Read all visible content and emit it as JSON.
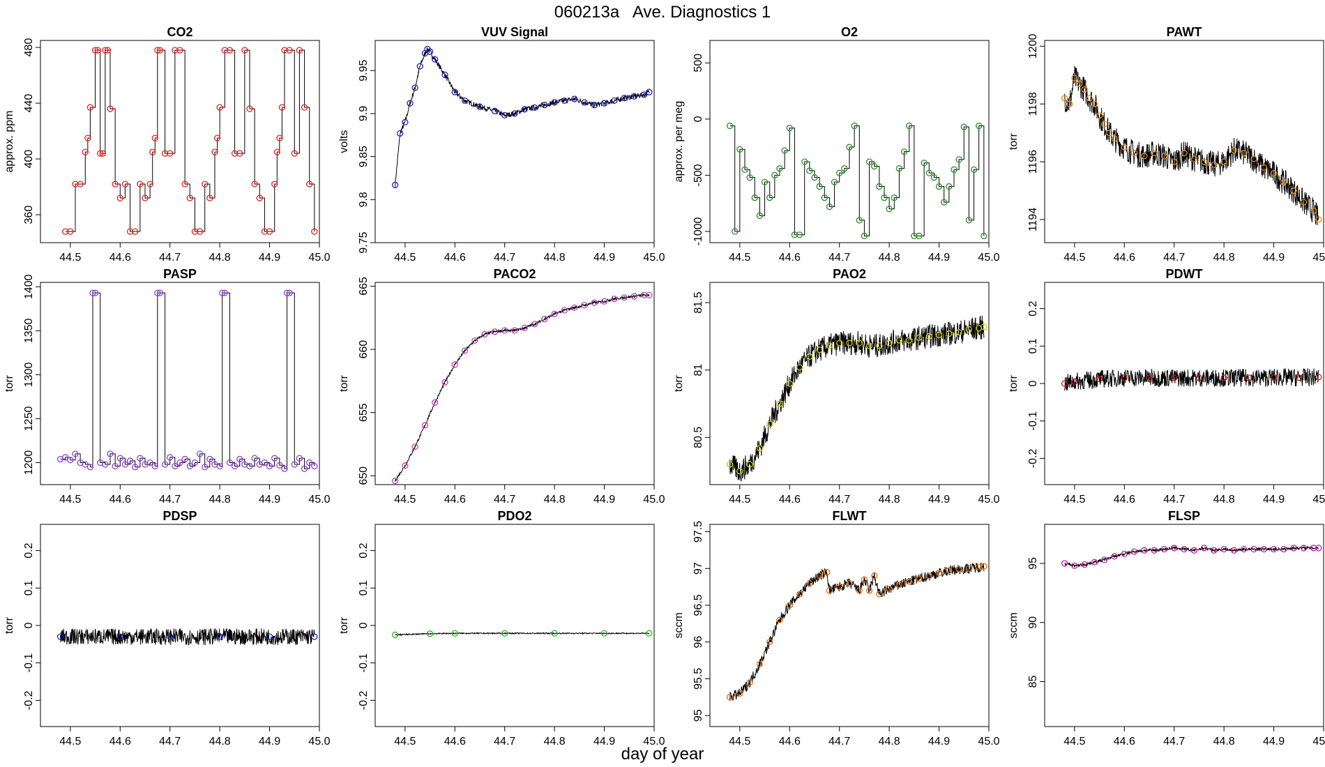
{
  "figure": {
    "title": "060213a   Ave. Diagnostics 1",
    "xlabel": "day of year"
  },
  "chart_data": [
    {
      "name": "CO2",
      "type": "line",
      "title": "CO2",
      "ylabel": "approx. ppm",
      "xlim": [
        44.44,
        45.0
      ],
      "ylim": [
        340,
        485
      ],
      "xticks": [
        44.5,
        44.6,
        44.7,
        44.8,
        44.9,
        45.0
      ],
      "yticks": [
        360,
        400,
        440,
        480
      ],
      "line_color": "#000000",
      "marker_color": "#e02020",
      "noise": 0,
      "x": [
        44.49,
        44.5,
        44.51,
        44.52,
        44.53,
        44.535,
        44.54,
        44.55,
        44.555,
        44.56,
        44.565,
        44.57,
        44.575,
        44.58,
        44.59,
        44.6,
        44.61,
        44.62,
        44.63,
        44.64,
        44.65,
        44.66,
        44.665,
        44.67,
        44.675,
        44.68,
        44.69,
        44.7,
        44.71,
        44.72,
        44.73,
        44.74,
        44.75,
        44.76,
        44.77,
        44.78,
        44.79,
        44.795,
        44.8,
        44.81,
        44.82,
        44.83,
        44.84,
        44.85,
        44.86,
        44.87,
        44.88,
        44.89,
        44.9,
        44.91,
        44.915,
        44.92,
        44.925,
        44.93,
        44.94,
        44.95,
        44.96,
        44.97,
        44.98,
        44.99
      ],
      "y": [
        348,
        348,
        382,
        382,
        405,
        415,
        437,
        478,
        478,
        404,
        404,
        478,
        478,
        436,
        382,
        372,
        382,
        348,
        348,
        382,
        372,
        382,
        405,
        415,
        478,
        478,
        404,
        404,
        478,
        478,
        382,
        372,
        348,
        348,
        382,
        372,
        405,
        415,
        437,
        478,
        478,
        404,
        404,
        478,
        436,
        382,
        372,
        348,
        348,
        382,
        405,
        415,
        437,
        478,
        478,
        404,
        478,
        437,
        382,
        348
      ]
    },
    {
      "name": "VUV Signal",
      "type": "line",
      "title": "VUV Signal",
      "ylabel": "volts",
      "xlim": [
        44.44,
        45.0
      ],
      "ylim": [
        9.75,
        9.985
      ],
      "xticks": [
        44.5,
        44.6,
        44.7,
        44.8,
        44.9,
        45.0
      ],
      "yticks": [
        9.75,
        9.8,
        9.85,
        9.9,
        9.95
      ],
      "line_color": "#000000",
      "marker_color": "#2020c0",
      "noise": 0.003,
      "x": [
        44.48,
        44.49,
        44.5,
        44.51,
        44.52,
        44.53,
        44.54,
        44.545,
        44.55,
        44.56,
        44.58,
        44.6,
        44.62,
        44.65,
        44.68,
        44.7,
        44.72,
        44.74,
        44.76,
        44.78,
        44.8,
        44.82,
        44.84,
        44.86,
        44.88,
        44.9,
        44.92,
        44.94,
        44.96,
        44.98,
        44.99
      ],
      "y": [
        9.817,
        9.877,
        9.89,
        9.912,
        9.93,
        9.955,
        9.97,
        9.975,
        9.972,
        9.963,
        9.945,
        9.925,
        9.915,
        9.908,
        9.903,
        9.898,
        9.9,
        9.905,
        9.907,
        9.91,
        9.913,
        9.915,
        9.917,
        9.913,
        9.91,
        9.912,
        9.915,
        9.918,
        9.92,
        9.922,
        9.925
      ]
    },
    {
      "name": "O2",
      "type": "line",
      "title": "O2",
      "ylabel": "approx. per meg",
      "xlim": [
        44.44,
        45.0
      ],
      "ylim": [
        -1100,
        700
      ],
      "xticks": [
        44.5,
        44.6,
        44.7,
        44.8,
        44.9,
        45.0
      ],
      "yticks": [
        -1000,
        -500,
        0,
        500
      ],
      "line_color": "#000000",
      "marker_color": "#2a8a2a",
      "noise": 0,
      "x": [
        44.48,
        44.49,
        44.5,
        44.51,
        44.52,
        44.53,
        44.54,
        44.55,
        44.56,
        44.57,
        44.58,
        44.59,
        44.6,
        44.61,
        44.62,
        44.63,
        44.64,
        44.65,
        44.66,
        44.67,
        44.68,
        44.69,
        44.7,
        44.71,
        44.72,
        44.73,
        44.74,
        44.75,
        44.76,
        44.77,
        44.78,
        44.79,
        44.8,
        44.81,
        44.82,
        44.83,
        44.84,
        44.85,
        44.86,
        44.87,
        44.88,
        44.89,
        44.9,
        44.91,
        44.92,
        44.93,
        44.94,
        44.95,
        44.96,
        44.97,
        44.98,
        44.99
      ],
      "y": [
        -60,
        -1000,
        -270,
        -450,
        -520,
        -700,
        -860,
        -560,
        -700,
        -500,
        -440,
        -280,
        -80,
        -1030,
        -1030,
        -380,
        -460,
        -520,
        -600,
        -700,
        -780,
        -560,
        -480,
        -440,
        -250,
        -60,
        -900,
        -1040,
        -380,
        -420,
        -600,
        -700,
        -800,
        -700,
        -440,
        -290,
        -60,
        -1040,
        -1040,
        -390,
        -480,
        -520,
        -600,
        -740,
        -600,
        -450,
        -360,
        -70,
        -900,
        -450,
        -60,
        -1040
      ]
    },
    {
      "name": "PAWT",
      "type": "line",
      "title": "PAWT",
      "ylabel": "torr",
      "xlim": [
        44.44,
        45.0
      ],
      "ylim": [
        1193.2,
        1200.2
      ],
      "xticks": [
        44.5,
        44.6,
        44.7,
        44.8,
        44.9,
        45.0
      ],
      "yticks": [
        1194,
        1196,
        1198,
        1200
      ],
      "line_color": "#000000",
      "marker_color": "#e08a1a",
      "noise": 0.45,
      "x": [
        44.48,
        44.49,
        44.5,
        44.51,
        44.52,
        44.53,
        44.54,
        44.55,
        44.56,
        44.57,
        44.58,
        44.6,
        44.62,
        44.64,
        44.66,
        44.68,
        44.7,
        44.72,
        44.74,
        44.76,
        44.78,
        44.8,
        44.82,
        44.84,
        44.86,
        44.88,
        44.9,
        44.92,
        44.94,
        44.96,
        44.98,
        44.99
      ],
      "y": [
        1198.2,
        1198.0,
        1198.9,
        1198.7,
        1198.5,
        1198.2,
        1198.0,
        1197.6,
        1197.3,
        1197.0,
        1196.8,
        1196.5,
        1196.3,
        1196.2,
        1196.3,
        1196.2,
        1196.0,
        1196.3,
        1196.1,
        1196.0,
        1195.9,
        1196.0,
        1196.4,
        1196.3,
        1196.1,
        1195.8,
        1195.6,
        1195.3,
        1195.0,
        1194.6,
        1194.3,
        1194.0
      ]
    },
    {
      "name": "PASP",
      "type": "line",
      "title": "PASP",
      "ylabel": "torr",
      "xlim": [
        44.44,
        45.0
      ],
      "ylim": [
        1175,
        1405
      ],
      "xticks": [
        44.5,
        44.6,
        44.7,
        44.8,
        44.9,
        45.0
      ],
      "yticks": [
        1200,
        1250,
        1300,
        1350,
        1400
      ],
      "line_color": "#000000",
      "marker_color": "#9040d0",
      "noise": 0,
      "x": [
        44.48,
        44.49,
        44.5,
        44.51,
        44.52,
        44.53,
        44.54,
        44.545,
        44.55,
        44.56,
        44.57,
        44.58,
        44.59,
        44.6,
        44.61,
        44.62,
        44.63,
        44.64,
        44.65,
        44.66,
        44.67,
        44.675,
        44.68,
        44.69,
        44.7,
        44.71,
        44.72,
        44.73,
        44.74,
        44.75,
        44.76,
        44.77,
        44.78,
        44.79,
        44.8,
        44.805,
        44.81,
        44.82,
        44.83,
        44.84,
        44.85,
        44.86,
        44.87,
        44.88,
        44.89,
        44.9,
        44.91,
        44.92,
        44.93,
        44.935,
        44.94,
        44.95,
        44.96,
        44.97,
        44.98,
        44.99
      ],
      "y": [
        1204,
        1206,
        1203,
        1210,
        1200,
        1198,
        1195,
        1393,
        1393,
        1200,
        1198,
        1210,
        1196,
        1205,
        1198,
        1202,
        1195,
        1205,
        1198,
        1200,
        1196,
        1393,
        1393,
        1198,
        1206,
        1196,
        1200,
        1204,
        1196,
        1200,
        1210,
        1195,
        1204,
        1198,
        1196,
        1393,
        1393,
        1200,
        1196,
        1204,
        1198,
        1196,
        1205,
        1198,
        1200,
        1196,
        1205,
        1197,
        1193,
        1393,
        1393,
        1198,
        1205,
        1193,
        1200,
        1196
      ]
    },
    {
      "name": "PACO2",
      "type": "line",
      "title": "PACO2",
      "ylabel": "torr",
      "xlim": [
        44.44,
        45.0
      ],
      "ylim": [
        649.3,
        665.3
      ],
      "xticks": [
        44.5,
        44.6,
        44.7,
        44.8,
        44.9,
        45.0
      ],
      "yticks": [
        650,
        655,
        660,
        665
      ],
      "line_color": "#000000",
      "marker_color": "#c040c0",
      "noise": 0.1,
      "x": [
        44.48,
        44.5,
        44.52,
        44.54,
        44.56,
        44.58,
        44.6,
        44.62,
        44.64,
        44.66,
        44.68,
        44.7,
        44.72,
        44.74,
        44.76,
        44.78,
        44.8,
        44.82,
        44.84,
        44.86,
        44.88,
        44.9,
        44.92,
        44.94,
        44.96,
        44.98,
        44.99
      ],
      "y": [
        649.6,
        650.8,
        652.3,
        654.0,
        655.8,
        657.4,
        658.8,
        659.9,
        660.7,
        661.2,
        661.4,
        661.5,
        661.5,
        661.7,
        662.0,
        662.4,
        662.8,
        663.1,
        663.3,
        663.5,
        663.7,
        663.8,
        664.0,
        664.1,
        664.2,
        664.3,
        664.3
      ]
    },
    {
      "name": "PAO2",
      "type": "line",
      "title": "PAO2",
      "ylabel": "torr",
      "xlim": [
        44.44,
        45.0
      ],
      "ylim": [
        80.15,
        81.65
      ],
      "xticks": [
        44.5,
        44.6,
        44.7,
        44.8,
        44.9,
        45.0
      ],
      "yticks": [
        80.5,
        81.0,
        81.5
      ],
      "line_color": "#000000",
      "marker_color": "#c8c800",
      "noise": 0.09,
      "x": [
        44.48,
        44.5,
        44.52,
        44.54,
        44.56,
        44.58,
        44.6,
        44.62,
        44.64,
        44.66,
        44.68,
        44.7,
        44.72,
        44.74,
        44.76,
        44.78,
        44.8,
        44.82,
        44.84,
        44.86,
        44.88,
        44.9,
        44.92,
        44.94,
        44.96,
        44.98,
        44.99
      ],
      "y": [
        80.3,
        80.25,
        80.3,
        80.42,
        80.6,
        80.75,
        80.9,
        81.02,
        81.1,
        81.15,
        81.18,
        81.2,
        81.2,
        81.2,
        81.18,
        81.18,
        81.2,
        81.22,
        81.22,
        81.24,
        81.25,
        81.26,
        81.27,
        81.28,
        81.3,
        81.31,
        81.32
      ]
    },
    {
      "name": "PDWT",
      "type": "line",
      "title": "PDWT",
      "ylabel": "torr",
      "xlim": [
        44.44,
        45.0
      ],
      "ylim": [
        -0.27,
        0.27
      ],
      "xticks": [
        44.5,
        44.6,
        44.7,
        44.8,
        44.9,
        45.0
      ],
      "yticks": [
        -0.2,
        -0.1,
        0.0,
        0.1,
        0.2
      ],
      "line_color": "#000000",
      "marker_color": "#c02020",
      "noise": 0.024,
      "x": [
        44.48,
        44.5,
        44.55,
        44.6,
        44.65,
        44.7,
        44.75,
        44.8,
        44.85,
        44.9,
        44.95,
        44.99
      ],
      "y": [
        0.0,
        0.005,
        0.012,
        0.015,
        0.015,
        0.015,
        0.015,
        0.015,
        0.015,
        0.016,
        0.016,
        0.017
      ]
    },
    {
      "name": "PDSP",
      "type": "line",
      "title": "PDSP",
      "ylabel": "torr",
      "xlim": [
        44.44,
        45.0
      ],
      "ylim": [
        -0.27,
        0.27
      ],
      "xticks": [
        44.5,
        44.6,
        44.7,
        44.8,
        44.9,
        45.0
      ],
      "yticks": [
        -0.2,
        -0.1,
        0.0,
        0.1,
        0.2
      ],
      "line_color": "#000000",
      "marker_color": "#2020c0",
      "noise": 0.022,
      "x": [
        44.48,
        44.6,
        44.7,
        44.8,
        44.9,
        44.99
      ],
      "y": [
        -0.03,
        -0.03,
        -0.03,
        -0.03,
        -0.03,
        -0.03
      ]
    },
    {
      "name": "PDO2",
      "type": "line",
      "title": "PDO2",
      "ylabel": "torr",
      "xlim": [
        44.44,
        45.0
      ],
      "ylim": [
        -0.27,
        0.27
      ],
      "xticks": [
        44.5,
        44.6,
        44.7,
        44.8,
        44.9,
        45.0
      ],
      "yticks": [
        -0.2,
        -0.1,
        0.0,
        0.1,
        0.2
      ],
      "line_color": "#000000",
      "marker_color": "#20c020",
      "noise": 0.0015,
      "x": [
        44.48,
        44.55,
        44.6,
        44.7,
        44.8,
        44.9,
        44.99
      ],
      "y": [
        -0.025,
        -0.022,
        -0.021,
        -0.021,
        -0.021,
        -0.021,
        -0.021
      ]
    },
    {
      "name": "FLWT",
      "type": "line",
      "title": "FLWT",
      "ylabel": "sccm",
      "xlim": [
        44.44,
        45.0
      ],
      "ylim": [
        94.85,
        97.6
      ],
      "xticks": [
        44.5,
        44.6,
        44.7,
        44.8,
        44.9,
        45.0
      ],
      "yticks": [
        95.0,
        95.5,
        96.0,
        96.5,
        97.0,
        97.5
      ],
      "line_color": "#000000",
      "marker_color": "#e07010",
      "noise": 0.07,
      "x": [
        44.48,
        44.5,
        44.52,
        44.54,
        44.56,
        44.58,
        44.6,
        44.62,
        44.64,
        44.66,
        44.675,
        44.68,
        44.7,
        44.72,
        44.74,
        44.75,
        44.76,
        44.77,
        44.78,
        44.8,
        44.82,
        44.84,
        44.86,
        44.88,
        44.9,
        44.92,
        44.94,
        44.96,
        44.98,
        44.99
      ],
      "y": [
        95.25,
        95.3,
        95.45,
        95.7,
        96.0,
        96.3,
        96.5,
        96.65,
        96.8,
        96.9,
        96.95,
        96.7,
        96.75,
        96.8,
        96.7,
        96.85,
        96.7,
        96.9,
        96.65,
        96.72,
        96.78,
        96.82,
        96.86,
        96.9,
        96.94,
        96.97,
        96.99,
        97.0,
        97.02,
        97.03
      ]
    },
    {
      "name": "FLSP",
      "type": "line",
      "title": "FLSP",
      "ylabel": "sccm",
      "xlim": [
        44.44,
        45.0
      ],
      "ylim": [
        81.2,
        98.3
      ],
      "xticks": [
        44.5,
        44.6,
        44.7,
        44.8,
        44.9,
        45.0
      ],
      "yticks": [
        85,
        90,
        95
      ],
      "line_color": "#000000",
      "marker_color": "#c020a0",
      "noise": 0.12,
      "x": [
        44.48,
        44.5,
        44.52,
        44.54,
        44.56,
        44.58,
        44.6,
        44.62,
        44.64,
        44.66,
        44.68,
        44.7,
        44.72,
        44.74,
        44.76,
        44.78,
        44.8,
        44.82,
        44.84,
        44.86,
        44.88,
        44.9,
        44.92,
        44.94,
        44.96,
        44.98,
        44.99
      ],
      "y": [
        95.0,
        94.8,
        94.9,
        95.1,
        95.3,
        95.6,
        95.8,
        96.0,
        96.1,
        96.1,
        96.2,
        96.3,
        96.2,
        96.1,
        96.3,
        96.1,
        96.2,
        96.1,
        96.2,
        96.2,
        96.2,
        96.2,
        96.2,
        96.3,
        96.3,
        96.3,
        96.3
      ]
    }
  ]
}
